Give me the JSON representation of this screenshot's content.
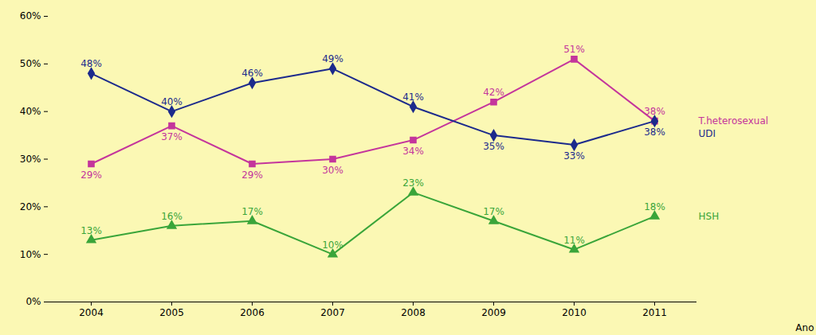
{
  "chart_data": {
    "type": "line",
    "x_label": "Ano",
    "categories": [
      "2004",
      "2005",
      "2006",
      "2007",
      "2008",
      "2009",
      "2010",
      "2011"
    ],
    "ylim": [
      0,
      60
    ],
    "yticks": [
      {
        "value": 0,
        "label": "0%"
      },
      {
        "value": 10,
        "label": "10%"
      },
      {
        "value": 20,
        "label": "20%"
      },
      {
        "value": 30,
        "label": "30%"
      },
      {
        "value": 40,
        "label": "40%"
      },
      {
        "value": 50,
        "label": "50%"
      },
      {
        "value": 60,
        "label": "60%"
      }
    ],
    "grid": false,
    "legend": "right",
    "data_labels": true,
    "series": [
      {
        "name": "T.heterosexual",
        "color": "#c4359c",
        "marker": "square",
        "values": [
          29,
          37,
          29,
          30,
          34,
          42,
          51,
          38
        ],
        "value_labels": [
          "29%",
          "37%",
          "29%",
          "30%",
          "34%",
          "42%",
          "51%",
          "38%"
        ]
      },
      {
        "name": "UDI",
        "color": "#1c2a8c",
        "marker": "diamond",
        "values": [
          48,
          40,
          46,
          49,
          41,
          35,
          33,
          38
        ],
        "value_labels": [
          "48%",
          "40%",
          "46%",
          "49%",
          "41%",
          "35%",
          "33%",
          "38%"
        ]
      },
      {
        "name": "HSH",
        "color": "#3aa53a",
        "marker": "triangle",
        "values": [
          13,
          16,
          17,
          10,
          23,
          17,
          11,
          18
        ],
        "value_labels": [
          "13%",
          "16%",
          "17%",
          "10%",
          "23%",
          "17%",
          "11%",
          "18%"
        ]
      }
    ]
  }
}
